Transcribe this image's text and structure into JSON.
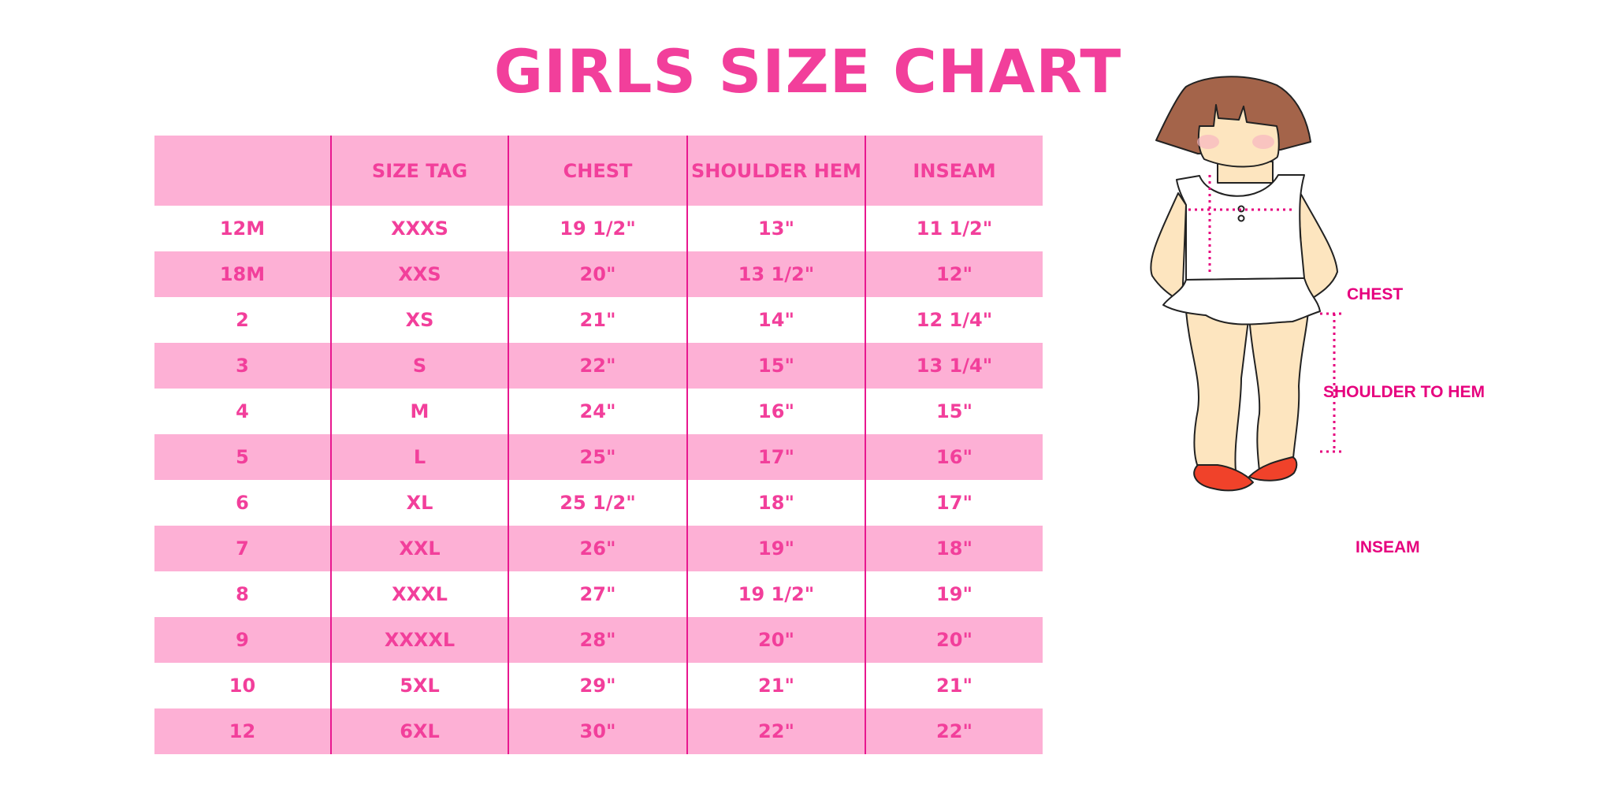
{
  "title": "GIRLS SIZE CHART",
  "table": {
    "headers": [
      "",
      "SIZE TAG",
      "CHEST",
      "SHOULDER HEM",
      "INSEAM"
    ],
    "rows": [
      [
        "12M",
        "XXXS",
        "19 1/2\"",
        "13\"",
        "11 1/2\""
      ],
      [
        "18M",
        "XXS",
        "20\"",
        "13 1/2\"",
        "12\""
      ],
      [
        "2",
        "XS",
        "21\"",
        "14\"",
        "12 1/4\""
      ],
      [
        "3",
        "S",
        "22\"",
        "15\"",
        "13 1/4\""
      ],
      [
        "4",
        "M",
        "24\"",
        "16\"",
        "15\""
      ],
      [
        "5",
        "L",
        "25\"",
        "17\"",
        "16\""
      ],
      [
        "6",
        "XL",
        "25 1/2\"",
        "18\"",
        "17\""
      ],
      [
        "7",
        "XXL",
        "26\"",
        "19\"",
        "18\""
      ],
      [
        "8",
        "XXXL",
        "27\"",
        "19 1/2\"",
        "19\""
      ],
      [
        "9",
        "XXXXL",
        "28\"",
        "20\"",
        "20\""
      ],
      [
        "10",
        "5XL",
        "29\"",
        "21\"",
        "21\""
      ],
      [
        "12",
        "6XL",
        "30\"",
        "22\"",
        "22\""
      ]
    ]
  },
  "figure": {
    "labels": {
      "chest": "CHEST",
      "shoulder_to_hem": "SHOULDER TO HEM",
      "inseam": "INSEAM"
    }
  },
  "colors": {
    "title": "#f23f9b",
    "row_band": "#fdb0d5",
    "divider": "#e8188f",
    "measure": "#e6007e"
  }
}
